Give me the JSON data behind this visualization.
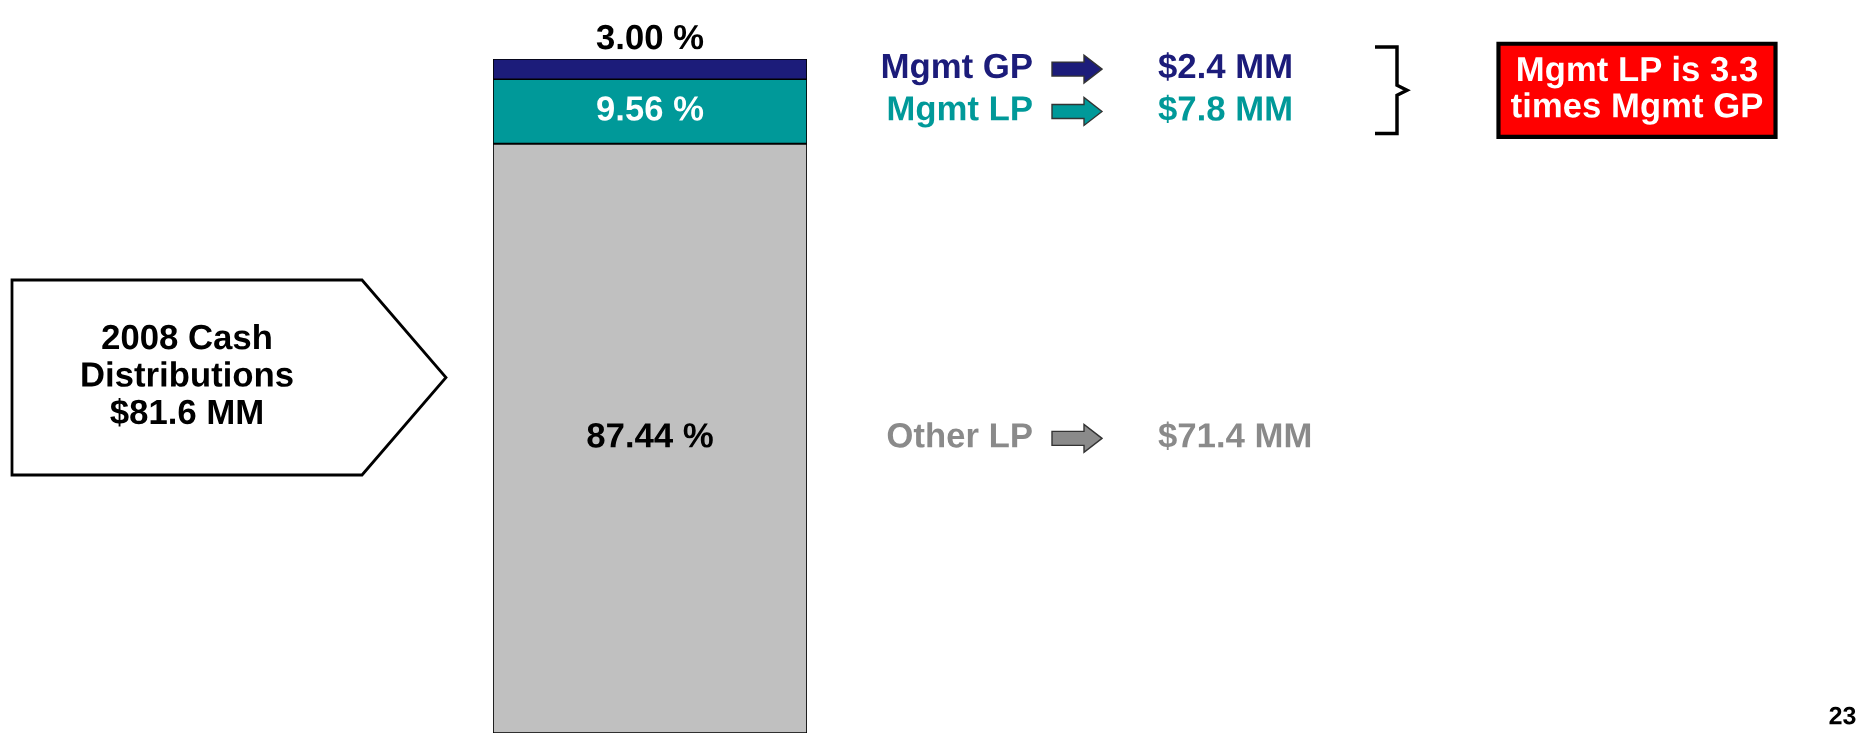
{
  "chart_data": {
    "type": "bar",
    "stacked": true,
    "categories": [
      null
    ],
    "ylim": [
      0,
      100
    ],
    "legend": "right",
    "series": [
      {
        "name": "Other LP",
        "color": "#c0c0c0",
        "values": [
          87.44
        ],
        "value_labels": [
          "87.44 %"
        ]
      },
      {
        "name": "Mgmt LP",
        "color": "#009999",
        "values": [
          9.56
        ],
        "value_labels": [
          "9.56 %"
        ]
      },
      {
        "name": "Mgmt GP",
        "color": "#1c1c7a",
        "values": [
          3.0
        ],
        "value_labels": [
          "3.00 %"
        ]
      }
    ],
    "annotations": [
      "$71.4 MM",
      "$7.8 MM",
      "$2.4 MM",
      "Mgmt LP is 3.3\ntimes Mgmt GP",
      "2008 Cash\nDistributions\n$81.6 MM",
      "23"
    ]
  }
}
